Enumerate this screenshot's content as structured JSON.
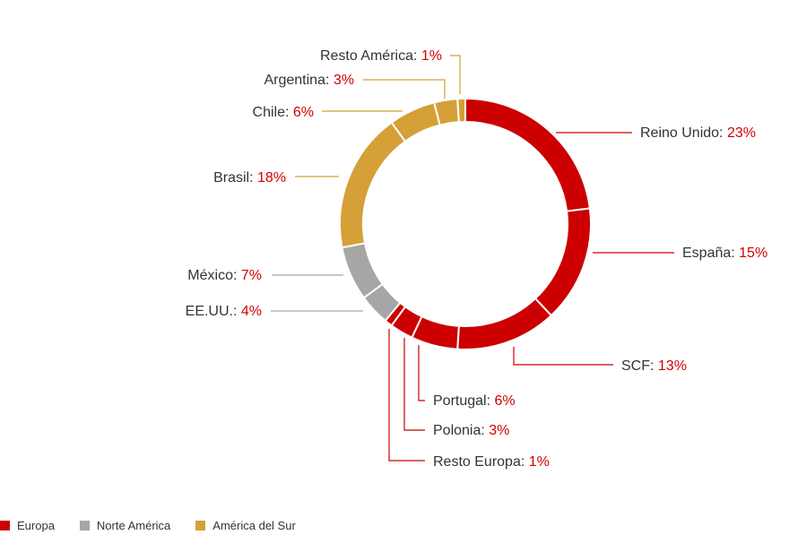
{
  "chart_data": {
    "type": "donut",
    "slices": [
      {
        "label": "Reino Unido",
        "value": 23,
        "value_text": "23%",
        "group": "Europa"
      },
      {
        "label": "España",
        "value": 15,
        "value_text": "15%",
        "group": "Europa"
      },
      {
        "label": "SCF",
        "value": 13,
        "value_text": "13%",
        "group": "Europa"
      },
      {
        "label": "Portugal",
        "value": 6,
        "value_text": "6%",
        "group": "Europa"
      },
      {
        "label": "Polonia",
        "value": 3,
        "value_text": "3%",
        "group": "Europa"
      },
      {
        "label": "Resto Europa",
        "value": 1,
        "value_text": "1%",
        "group": "Europa"
      },
      {
        "label": "EE.UU.",
        "value": 4,
        "value_text": "4%",
        "group": "Norte América"
      },
      {
        "label": "México",
        "value": 7,
        "value_text": "7%",
        "group": "Norte América"
      },
      {
        "label": "Brasil",
        "value": 18,
        "value_text": "18%",
        "group": "América del Sur"
      },
      {
        "label": "Chile",
        "value": 6,
        "value_text": "6%",
        "group": "América del Sur"
      },
      {
        "label": "Argentina",
        "value": 3,
        "value_text": "3%",
        "group": "América del Sur"
      },
      {
        "label": "Resto América",
        "value": 1,
        "value_text": "1%",
        "group": "América del Sur"
      }
    ],
    "legend": [
      {
        "name": "Europa",
        "color": "#cc0000"
      },
      {
        "name": "Norte América",
        "color": "#a6a6a6"
      },
      {
        "name": "América del Sur",
        "color": "#d4a037"
      }
    ],
    "legend_position": "bottom-left",
    "value_color": "#d10000"
  }
}
